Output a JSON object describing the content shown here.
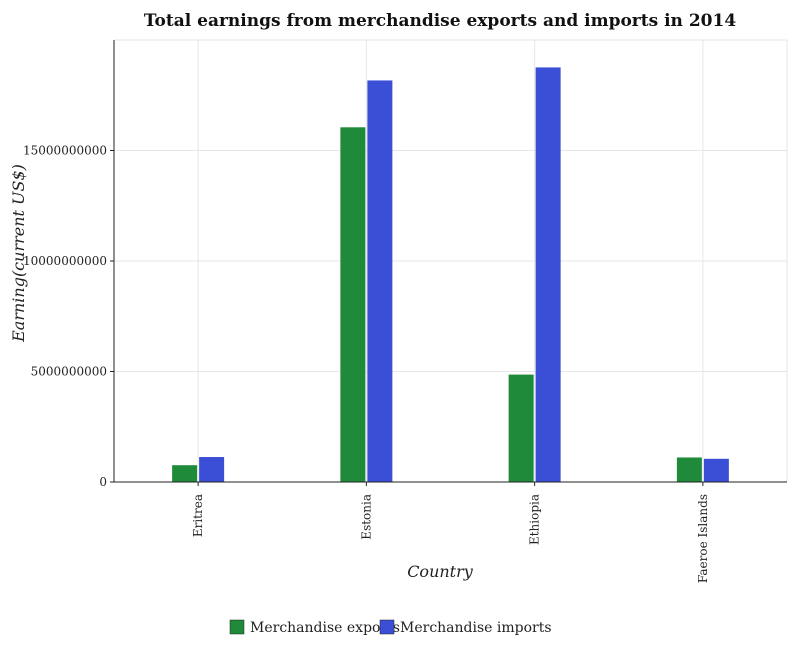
{
  "chart_data": {
    "type": "bar",
    "title": "Total earnings from merchandise exports and imports in 2014",
    "xlabel": "Country",
    "ylabel": "Earning(current US$)",
    "categories": [
      "Eritrea",
      "Estonia",
      "Ethiopia",
      "Faeroe Islands"
    ],
    "series": [
      {
        "name": "Merchandise exports",
        "color": "#1f8b3a",
        "values": [
          760000000,
          16050000000,
          4860000000,
          1110000000
        ]
      },
      {
        "name": "Merchandise imports",
        "color": "#3a4fd6",
        "values": [
          1130000000,
          18170000000,
          18760000000,
          1050000000
        ]
      }
    ],
    "yticks": [
      0,
      5000000000,
      10000000000,
      15000000000
    ],
    "ytick_labels": [
      "0",
      "5000000000",
      "10000000000",
      "15000000000"
    ],
    "ylim": [
      0,
      20000000000
    ],
    "grid": true,
    "legend_position": "bottom-center"
  }
}
